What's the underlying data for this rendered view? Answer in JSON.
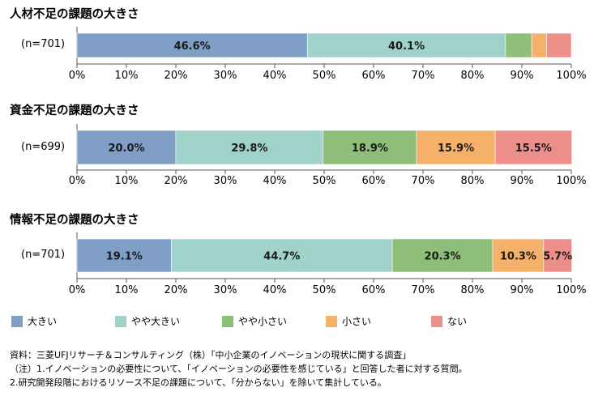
{
  "chart_data": [
    {
      "type": "bar",
      "orientation": "horizontal-stacked",
      "title": "人材不足の課題の大きさ",
      "category_label": "(n=701)",
      "xlim": [
        0,
        100
      ],
      "ticks": [
        "0%",
        "10%",
        "20%",
        "30%",
        "40%",
        "50%",
        "60%",
        "70%",
        "80%",
        "90%",
        "100%"
      ],
      "values": [
        46.6,
        40.1,
        5.3,
        3.0,
        5.0
      ],
      "labels": [
        "46.6%",
        "40.1%",
        "",
        "",
        ""
      ]
    },
    {
      "type": "bar",
      "orientation": "horizontal-stacked",
      "title": "資金不足の課題の大きさ",
      "category_label": "(n=699)",
      "xlim": [
        0,
        100
      ],
      "ticks": [
        "0%",
        "10%",
        "20%",
        "30%",
        "40%",
        "50%",
        "60%",
        "70%",
        "80%",
        "90%",
        "100%"
      ],
      "values": [
        20.0,
        29.8,
        18.9,
        15.9,
        15.5
      ],
      "labels": [
        "20.0%",
        "29.8%",
        "18.9%",
        "15.9%",
        "15.5%"
      ]
    },
    {
      "type": "bar",
      "orientation": "horizontal-stacked",
      "title": "情報不足の課題の大きさ",
      "category_label": "(n=701)",
      "xlim": [
        0,
        100
      ],
      "ticks": [
        "0%",
        "10%",
        "20%",
        "30%",
        "40%",
        "50%",
        "60%",
        "70%",
        "80%",
        "90%",
        "100%"
      ],
      "values": [
        19.1,
        44.7,
        20.3,
        10.3,
        5.7
      ],
      "labels": [
        "19.1%",
        "44.7%",
        "20.3%",
        "10.3%",
        "5.7%"
      ]
    }
  ],
  "legend": [
    {
      "label": "大きい",
      "color": "#7f9fc6"
    },
    {
      "label": "やや大きい",
      "color": "#a0d2ca"
    },
    {
      "label": "やや小さい",
      "color": "#8dbf78"
    },
    {
      "label": "小さい",
      "color": "#f5b06a"
    },
    {
      "label": "ない",
      "color": "#ec8f8b"
    }
  ],
  "notes": {
    "source": "資料：三菱UFJリサーチ＆コンサルティング（株）「中小企業のイノベーションの現状に関する調査」",
    "note1": "（注）1.イノベーションの必要性について、「イノベーションの必要性を感じている」と回答した者に対する質問。",
    "note2": "2.研究開発段階におけるリソース不足の課題について、「分からない」を除いて集計している。"
  }
}
